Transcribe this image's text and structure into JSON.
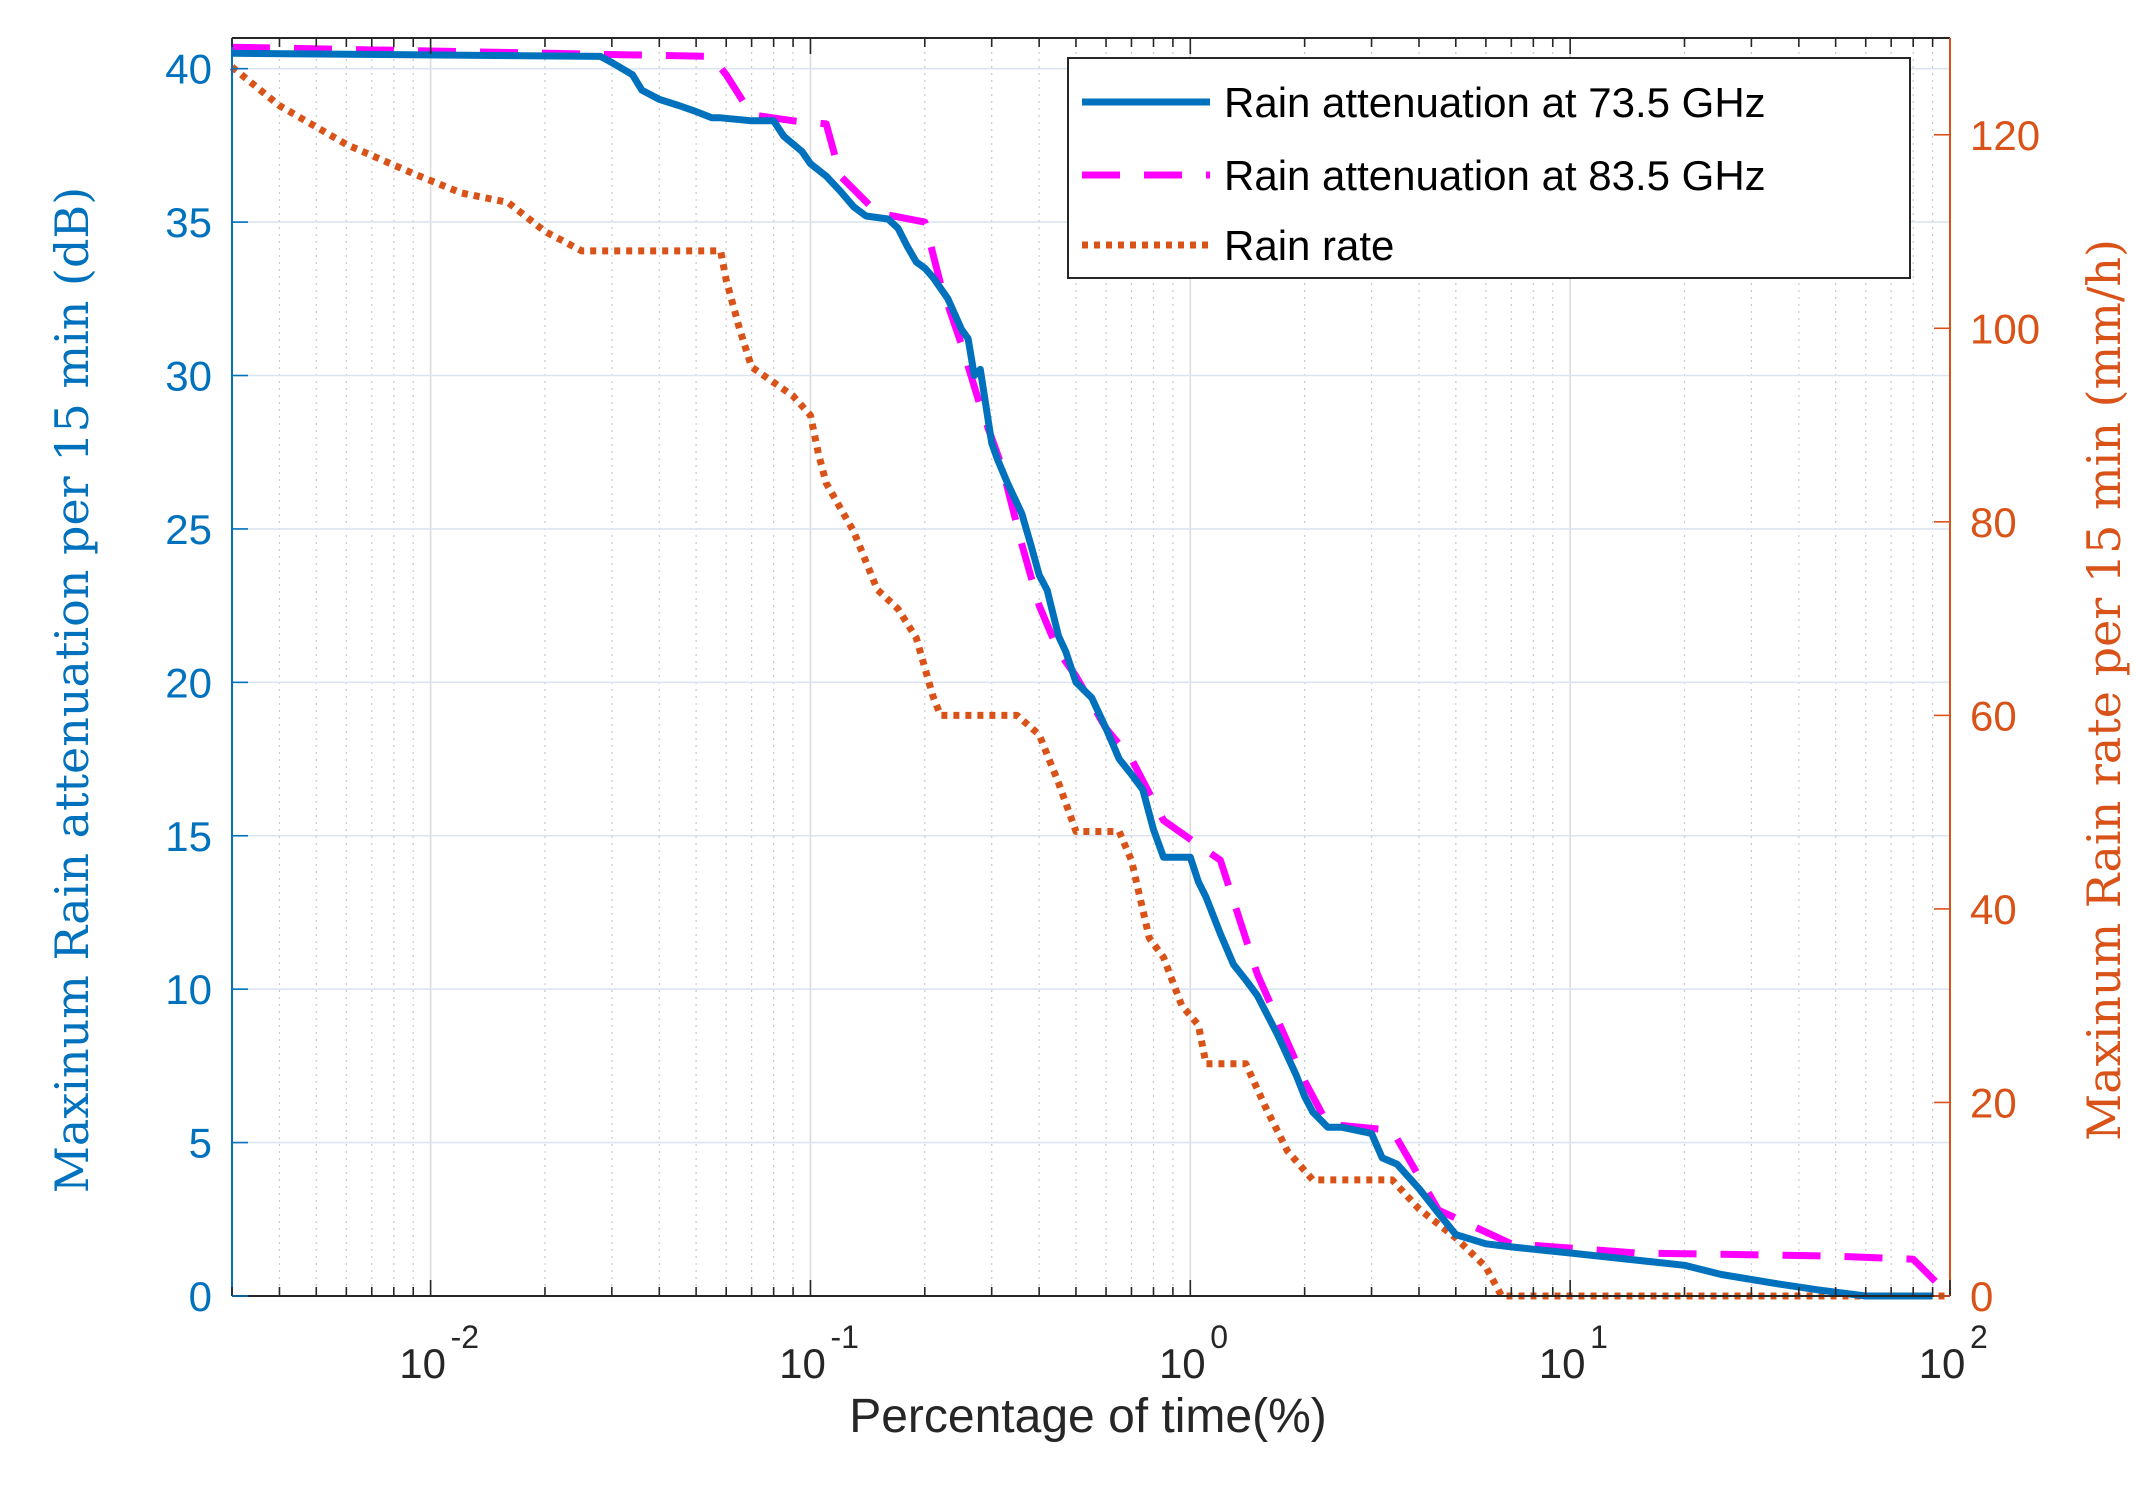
{
  "chart_data": {
    "type": "line",
    "title": "",
    "xlabel": "Percentage of time(%)",
    "ylabel_left": "Maxinum Rain attenuation per 15 min (dB)",
    "ylabel_right": "Maxinum Rain rate per 15 min (mm/h)",
    "xscale": "log",
    "xlim": [
      0.003,
      100
    ],
    "ylim_left": [
      0,
      41
    ],
    "ylim_right": [
      0,
      130
    ],
    "grid": true,
    "x_ticks": [
      {
        "value": 0.01,
        "base": "10",
        "exp": "-2"
      },
      {
        "value": 0.1,
        "base": "10",
        "exp": "-1"
      },
      {
        "value": 1,
        "base": "10",
        "exp": "0"
      },
      {
        "value": 10,
        "base": "10",
        "exp": "1"
      },
      {
        "value": 100,
        "base": "10",
        "exp": "2"
      }
    ],
    "y_ticks_left": [
      0,
      5,
      10,
      15,
      20,
      25,
      30,
      35,
      40
    ],
    "y_ticks_right": [
      0,
      20,
      40,
      60,
      80,
      100,
      120
    ],
    "legend_position": "top-right",
    "colors": {
      "blue": "#0072BD",
      "magenta": "#FF00FF",
      "orange": "#D95319"
    },
    "series": [
      {
        "name": "Rain attenuation at 73.5 GHz",
        "axis": "left",
        "style": "solid",
        "x": [
          0.003,
          0.028,
          0.03,
          0.034,
          0.036,
          0.04,
          0.045,
          0.05,
          0.055,
          0.058,
          0.07,
          0.08,
          0.085,
          0.095,
          0.1,
          0.11,
          0.12,
          0.13,
          0.14,
          0.16,
          0.17,
          0.18,
          0.19,
          0.2,
          0.21,
          0.23,
          0.25,
          0.26,
          0.27,
          0.28,
          0.3,
          0.31,
          0.33,
          0.36,
          0.38,
          0.4,
          0.42,
          0.45,
          0.47,
          0.5,
          0.55,
          0.6,
          0.65,
          0.7,
          0.75,
          0.8,
          0.85,
          0.9,
          1.0,
          1.05,
          1.1,
          1.2,
          1.3,
          1.4,
          1.5,
          1.7,
          1.9,
          2.0,
          2.1,
          2.3,
          2.5,
          3.0,
          3.2,
          3.5,
          4.0,
          4.5,
          5.0,
          6.0,
          7.0,
          10,
          20,
          25,
          35,
          45,
          60,
          90
        ],
        "values": [
          40.5,
          40.4,
          40.2,
          39.8,
          39.3,
          39.0,
          38.8,
          38.6,
          38.4,
          38.4,
          38.3,
          38.3,
          37.8,
          37.3,
          36.9,
          36.5,
          36.0,
          35.5,
          35.2,
          35.1,
          34.8,
          34.2,
          33.7,
          33.5,
          33.2,
          32.5,
          31.5,
          31.2,
          30.0,
          30.2,
          27.8,
          27.3,
          26.5,
          25.5,
          24.5,
          23.5,
          23.0,
          21.5,
          21.0,
          20.0,
          19.5,
          18.5,
          17.5,
          17.0,
          16.5,
          15.2,
          14.3,
          14.3,
          14.3,
          13.5,
          13.0,
          11.8,
          10.8,
          10.3,
          9.8,
          8.5,
          7.2,
          6.5,
          6.0,
          5.5,
          5.5,
          5.3,
          4.5,
          4.3,
          3.5,
          2.7,
          2.0,
          1.7,
          1.6,
          1.4,
          1.0,
          0.7,
          0.4,
          0.2,
          0.0,
          0.0
        ]
      },
      {
        "name": "Rain attenuation at 83.5 GHz",
        "axis": "left",
        "style": "dashed",
        "x": [
          0.003,
          0.055,
          0.06,
          0.07,
          0.09,
          0.11,
          0.12,
          0.15,
          0.2,
          0.22,
          0.25,
          0.28,
          0.32,
          0.36,
          0.4,
          0.45,
          0.5,
          0.6,
          0.7,
          0.85,
          1.2,
          1.5,
          2.0,
          2.3,
          3.4,
          4.5,
          7.0,
          15,
          50,
          80,
          100
        ],
        "values": [
          40.7,
          40.4,
          39.8,
          38.5,
          38.3,
          38.2,
          36.5,
          35.3,
          35.0,
          33.0,
          31.0,
          29.0,
          27.0,
          24.5,
          22.5,
          21.0,
          20.2,
          18.5,
          17.5,
          15.5,
          14.2,
          10.5,
          7.0,
          5.6,
          5.4,
          2.8,
          1.7,
          1.4,
          1.3,
          1.2,
          0.0
        ]
      },
      {
        "name": "Rain rate",
        "axis": "right",
        "style": "dotted",
        "x": [
          0.003,
          0.004,
          0.006,
          0.009,
          0.012,
          0.016,
          0.02,
          0.025,
          0.03,
          0.035,
          0.04,
          0.05,
          0.058,
          0.06,
          0.065,
          0.07,
          0.09,
          0.1,
          0.105,
          0.11,
          0.13,
          0.15,
          0.17,
          0.19,
          0.21,
          0.22,
          0.25,
          0.3,
          0.35,
          0.4,
          0.45,
          0.5,
          0.65,
          0.7,
          0.78,
          0.85,
          0.95,
          1.05,
          1.1,
          1.2,
          1.4,
          1.6,
          1.7,
          1.8,
          2.1,
          2.4,
          2.8,
          3.4,
          4.0,
          5.0,
          6.0,
          6.6,
          7.0,
          10,
          100
        ],
        "values": [
          127,
          123,
          119,
          116,
          114,
          113,
          110,
          108,
          108,
          108,
          108,
          108,
          108,
          105,
          100,
          96,
          93,
          91,
          87,
          84,
          79,
          73,
          71,
          68,
          62,
          60,
          60,
          60,
          60,
          58,
          53,
          48,
          48,
          45,
          37,
          35,
          30,
          28,
          24,
          24,
          24,
          19,
          17,
          15,
          12,
          12,
          12,
          12,
          9,
          6,
          3,
          0,
          0,
          0,
          0
        ]
      }
    ]
  }
}
